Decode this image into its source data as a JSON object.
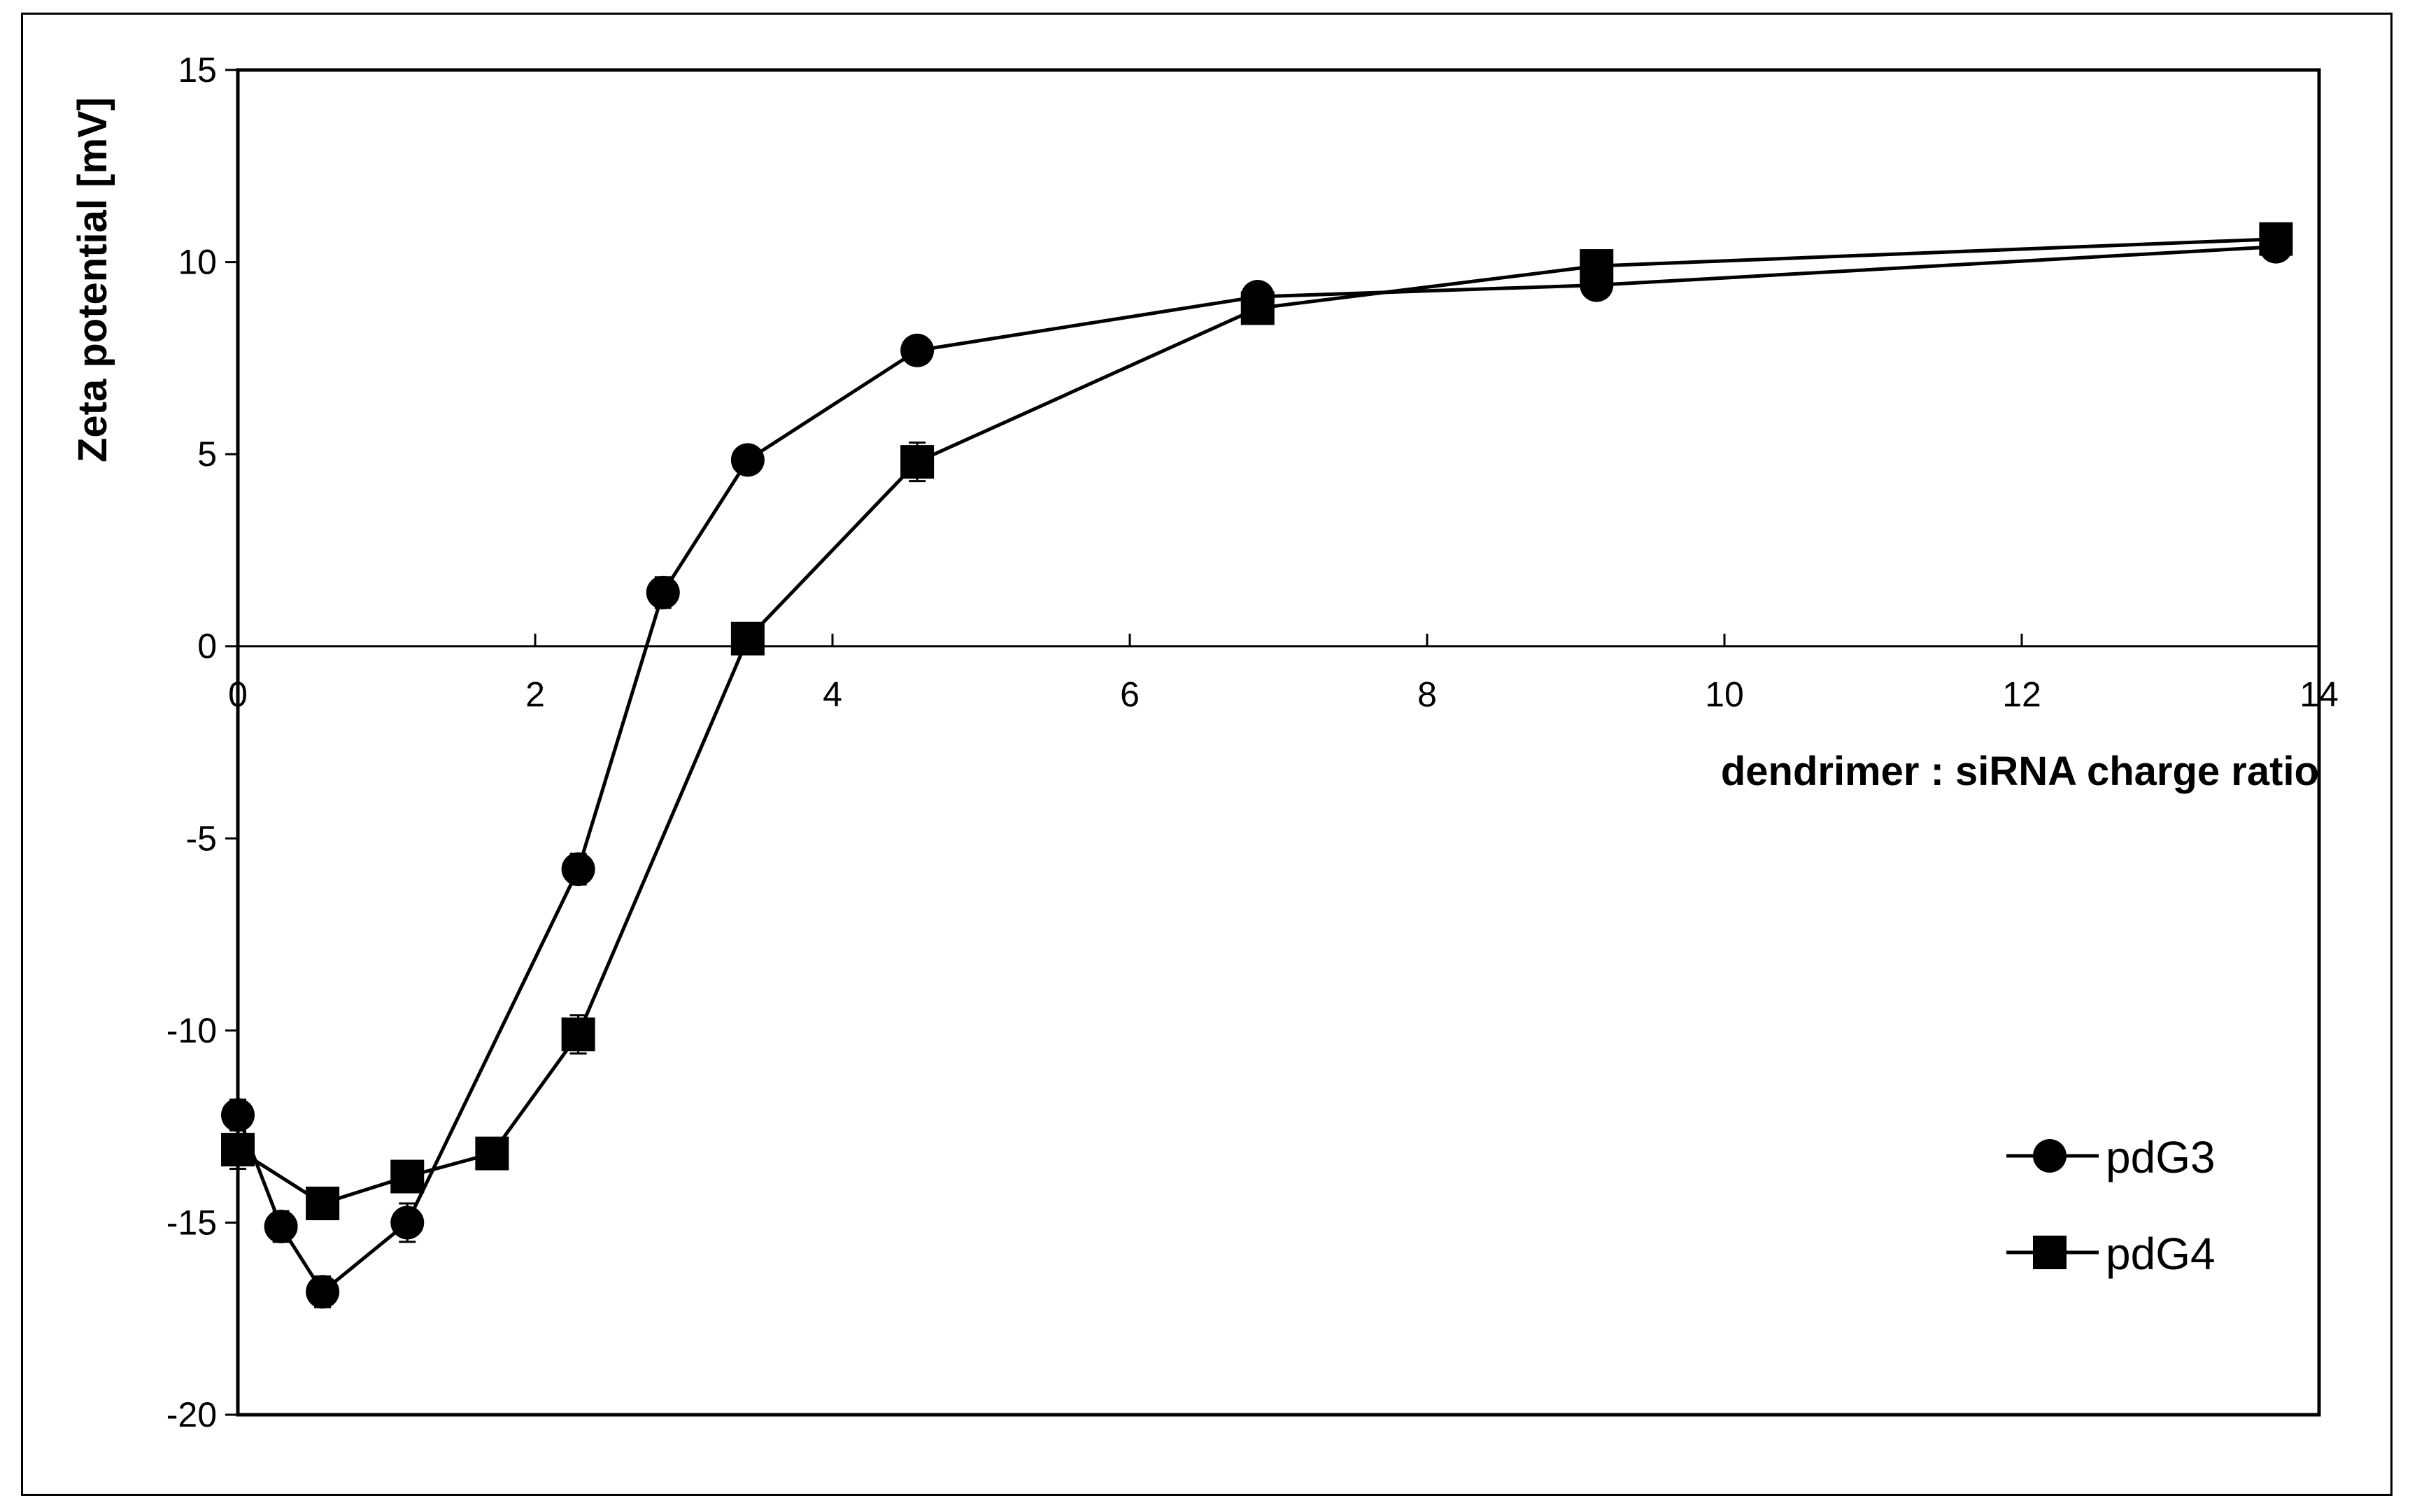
{
  "chart_data": {
    "type": "line",
    "title": "",
    "xlabel": "dendrimer : siRNA charge ratio",
    "ylabel": "Zeta potential [mV]",
    "xlim": [
      0,
      14
    ],
    "ylim": [
      -20,
      15
    ],
    "xticks": [
      0,
      2,
      4,
      6,
      8,
      10,
      12,
      14
    ],
    "yticks": [
      -20,
      -15,
      -10,
      -5,
      0,
      5,
      10,
      15
    ],
    "grid": false,
    "legend_position": "bottom-right",
    "series": [
      {
        "name": "pdG3",
        "marker": "circle",
        "color": "#000000",
        "points": [
          {
            "x": 0.0,
            "y": -12.2,
            "err": 0.4
          },
          {
            "x": 0.29,
            "y": -15.1,
            "err": 0.4
          },
          {
            "x": 0.57,
            "y": -16.8,
            "err": 0.4
          },
          {
            "x": 1.14,
            "y": -15.0,
            "err": 0.5
          },
          {
            "x": 2.29,
            "y": -5.8,
            "err": 0.4
          },
          {
            "x": 2.86,
            "y": 1.4,
            "err": 0.4
          },
          {
            "x": 3.43,
            "y": 4.85,
            "err": 0.2
          },
          {
            "x": 4.57,
            "y": 7.7,
            "err": 0.2
          },
          {
            "x": 6.86,
            "y": 9.1,
            "err": 0.3
          },
          {
            "x": 9.14,
            "y": 9.4,
            "err": 0.2
          },
          {
            "x": 13.71,
            "y": 10.4,
            "err": 0.2
          }
        ]
      },
      {
        "name": "pdG4",
        "marker": "square",
        "color": "#000000",
        "points": [
          {
            "x": 0.0,
            "y": -13.1,
            "err": 0.5
          },
          {
            "x": 0.57,
            "y": -14.5,
            "err": 0.3
          },
          {
            "x": 1.14,
            "y": -13.8,
            "err": 0.2
          },
          {
            "x": 1.71,
            "y": -13.2,
            "err": 0.2
          },
          {
            "x": 2.29,
            "y": -10.1,
            "err": 0.5
          },
          {
            "x": 3.43,
            "y": 0.2,
            "err": 0.3
          },
          {
            "x": 4.57,
            "y": 4.8,
            "err": 0.5
          },
          {
            "x": 6.86,
            "y": 8.8,
            "err": 0.3
          },
          {
            "x": 9.14,
            "y": 9.9,
            "err": 0.3
          },
          {
            "x": 13.71,
            "y": 10.6,
            "err": 0.2
          }
        ]
      }
    ]
  }
}
